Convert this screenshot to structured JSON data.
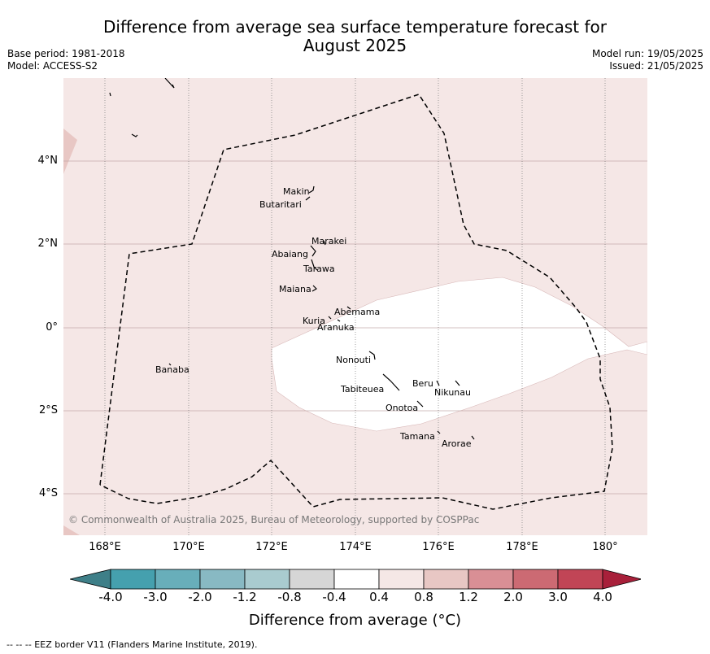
{
  "title_line1": "Difference from average sea surface temperature forecast for",
  "title_line2": "August 2025",
  "base_period": "Base period: 1981-2018",
  "model": "Model: ACCESS-S2",
  "model_run": "Model run: 19/05/2025",
  "issued": "Issued: 21/05/2025",
  "copyright": "© Commonwealth of Australia 2025, Bureau of Meteorology, supported by COSPPac",
  "lat_labels": [
    "4°N",
    "2°N",
    "0°",
    "2°S",
    "4°S"
  ],
  "lon_labels": [
    "168°E",
    "170°E",
    "172°E",
    "174°E",
    "176°E",
    "178°E",
    "180°"
  ],
  "places": {
    "makin": "Makin",
    "butaritari": "Butaritari",
    "marakei": "Marakei",
    "abaiang": "Abaiang",
    "tarawa": "Tarawa",
    "maiana": "Maiana",
    "abemama": "Abemama",
    "kuria": "Kuria",
    "aranuka": "Aranuka",
    "nonouti": "Nonouti",
    "banaba": "Banaba",
    "tabiteuea": "Tabiteuea",
    "beru": "Beru",
    "nikunau": "Nikunau",
    "onotoa": "Onotoa",
    "tamana": "Tamana",
    "arorae": "Arorae"
  },
  "colorbar": {
    "ticks": [
      "-4.0",
      "-3.0",
      "-2.0",
      "-1.2",
      "-0.8",
      "-0.4",
      "0.4",
      "0.8",
      "1.2",
      "2.0",
      "3.0",
      "4.0"
    ],
    "colors": [
      "#45a0ae",
      "#68aeba",
      "#88b9c3",
      "#a9cbcf",
      "#d6d6d6",
      "#ffffff",
      "#f5e7e6",
      "#e8c7c4",
      "#d98f95",
      "#cc6a73",
      "#c14556"
    ],
    "under_color": "#3e7f88",
    "over_color": "#a8203a",
    "label": "Difference from average (°C)"
  },
  "map_colors": {
    "background": "#f5e7e6",
    "neutral_patch": "#ffffff",
    "edge_patch": "#e8c7c4"
  },
  "footnote": "--  --  -- EEZ border V11 (Flanders Marine Institute, 2019)."
}
